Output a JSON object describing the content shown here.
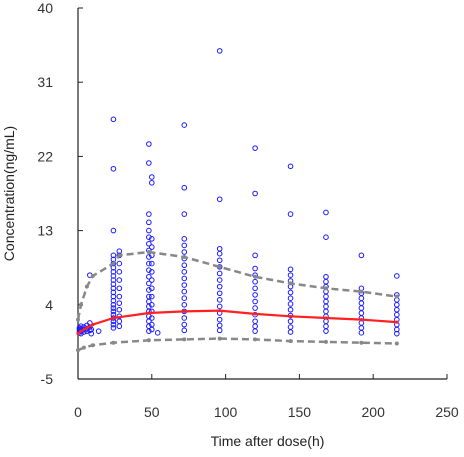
{
  "chart_data": {
    "type": "scatter",
    "title": "",
    "xlabel": "Time after dose(h)",
    "ylabel": "Concentration(ng/mL)",
    "xlim": [
      0,
      250
    ],
    "ylim": [
      -5,
      40
    ],
    "xticks": [
      0,
      50,
      100,
      150,
      200,
      250
    ],
    "yticks": [
      -5,
      4,
      13,
      22,
      31,
      40
    ],
    "grid": false,
    "legend": "none",
    "colors": {
      "points": "#1a1aff",
      "median": "#ff2020",
      "percentiles": "#888888",
      "axis": "#222222"
    },
    "series": [
      {
        "kind": "points",
        "groups": [
          {
            "x": 1,
            "y": [
              0.6,
              0.8,
              1.0,
              1.2
            ]
          },
          {
            "x": 2,
            "y": [
              0.5,
              0.8,
              1.1,
              1.4
            ]
          },
          {
            "x": 4,
            "y": [
              0.7,
              1.0,
              1.3
            ]
          },
          {
            "x": 6,
            "y": [
              0.8,
              1.1,
              1.5
            ]
          },
          {
            "x": 8,
            "y": [
              0.9,
              1.3,
              1.8,
              7.6
            ]
          },
          {
            "x": 9,
            "y": [
              0.5,
              1.0
            ]
          },
          {
            "x": 14,
            "y": [
              0.8
            ]
          },
          {
            "x": 24,
            "y": [
              1.2,
              1.6,
              2.0,
              2.4,
              2.8,
              3.2,
              3.6,
              4.0,
              4.5,
              5.0,
              5.5,
              6.0,
              6.5,
              7.0,
              7.5,
              8.0,
              8.5,
              9.0,
              9.5,
              10.0,
              13.0,
              20.5,
              26.5
            ]
          },
          {
            "x": 28,
            "y": [
              1.4,
              2.0,
              2.6,
              3.4,
              4.2,
              5.0,
              6.0,
              7.0,
              8.0,
              9.0,
              10.0,
              10.5
            ]
          },
          {
            "x": 48,
            "y": [
              0.8,
              1.4,
              2.0,
              2.6,
              3.2,
              3.8,
              4.4,
              5.0,
              5.8,
              6.6,
              7.4,
              8.2,
              9.0,
              9.8,
              10.6,
              11.4,
              12.2,
              13.0,
              14.0,
              15.0,
              21.2,
              23.5
            ]
          },
          {
            "x": 50,
            "y": [
              1.0,
              1.6,
              2.4,
              3.2,
              4.0,
              5.0,
              6.0,
              7.0,
              8.0,
              9.0,
              10.0,
              11.0,
              12.0,
              18.8,
              19.5
            ]
          },
          {
            "x": 54,
            "y": [
              0.6
            ]
          },
          {
            "x": 72,
            "y": [
              0.9,
              1.6,
              2.4,
              3.2,
              4.0,
              4.8,
              5.6,
              6.4,
              7.2,
              8.0,
              8.8,
              9.6,
              10.4,
              11.2,
              12.0,
              15.0,
              18.2,
              25.8
            ]
          },
          {
            "x": 96,
            "y": [
              0.9,
              1.5,
              2.2,
              3.0,
              3.8,
              4.6,
              5.4,
              6.2,
              7.0,
              7.8,
              8.6,
              9.4,
              10.2,
              10.8,
              16.8,
              34.8
            ]
          },
          {
            "x": 120,
            "y": [
              0.8,
              1.4,
              2.0,
              2.8,
              3.6,
              4.4,
              5.2,
              6.0,
              6.8,
              7.6,
              8.4,
              10.0,
              17.5,
              23.0
            ]
          },
          {
            "x": 144,
            "y": [
              0.7,
              1.3,
              2.0,
              2.7,
              3.4,
              4.1,
              4.8,
              5.5,
              6.2,
              6.9,
              7.6,
              8.3,
              15.0,
              20.8
            ]
          },
          {
            "x": 168,
            "y": [
              0.8,
              1.4,
              2.0,
              2.6,
              3.2,
              3.8,
              4.4,
              5.0,
              5.6,
              6.2,
              6.8,
              7.4,
              12.2,
              15.2
            ]
          },
          {
            "x": 192,
            "y": [
              0.6,
              1.2,
              1.8,
              2.4,
              3.0,
              3.6,
              4.2,
              4.8,
              5.4,
              6.0,
              10.0
            ]
          },
          {
            "x": 216,
            "y": [
              0.5,
              1.0,
              1.6,
              2.2,
              2.8,
              3.4,
              4.0,
              4.6,
              5.2,
              7.5
            ]
          }
        ]
      },
      {
        "kind": "median",
        "x": [
          0,
          2,
          6,
          10,
          24,
          48,
          72,
          96,
          120,
          144,
          168,
          192,
          216
        ],
        "y": [
          0.5,
          0.8,
          1.2,
          1.6,
          2.4,
          3.0,
          3.2,
          3.3,
          2.9,
          2.6,
          2.4,
          2.2,
          1.9
        ]
      },
      {
        "kind": "upper",
        "x": [
          0,
          2,
          6,
          10,
          24,
          28,
          48,
          72,
          96,
          120,
          144,
          168,
          192,
          216
        ],
        "y": [
          2.2,
          4.0,
          6.2,
          7.5,
          9.0,
          10.0,
          10.4,
          9.8,
          8.6,
          7.4,
          6.6,
          6.0,
          5.6,
          5.0
        ]
      },
      {
        "kind": "lower",
        "x": [
          0,
          4,
          10,
          24,
          48,
          72,
          96,
          120,
          144,
          168,
          192,
          216
        ],
        "y": [
          -1.5,
          -1.2,
          -0.9,
          -0.6,
          -0.3,
          -0.2,
          -0.1,
          -0.2,
          -0.4,
          -0.5,
          -0.6,
          -0.7
        ]
      }
    ]
  }
}
